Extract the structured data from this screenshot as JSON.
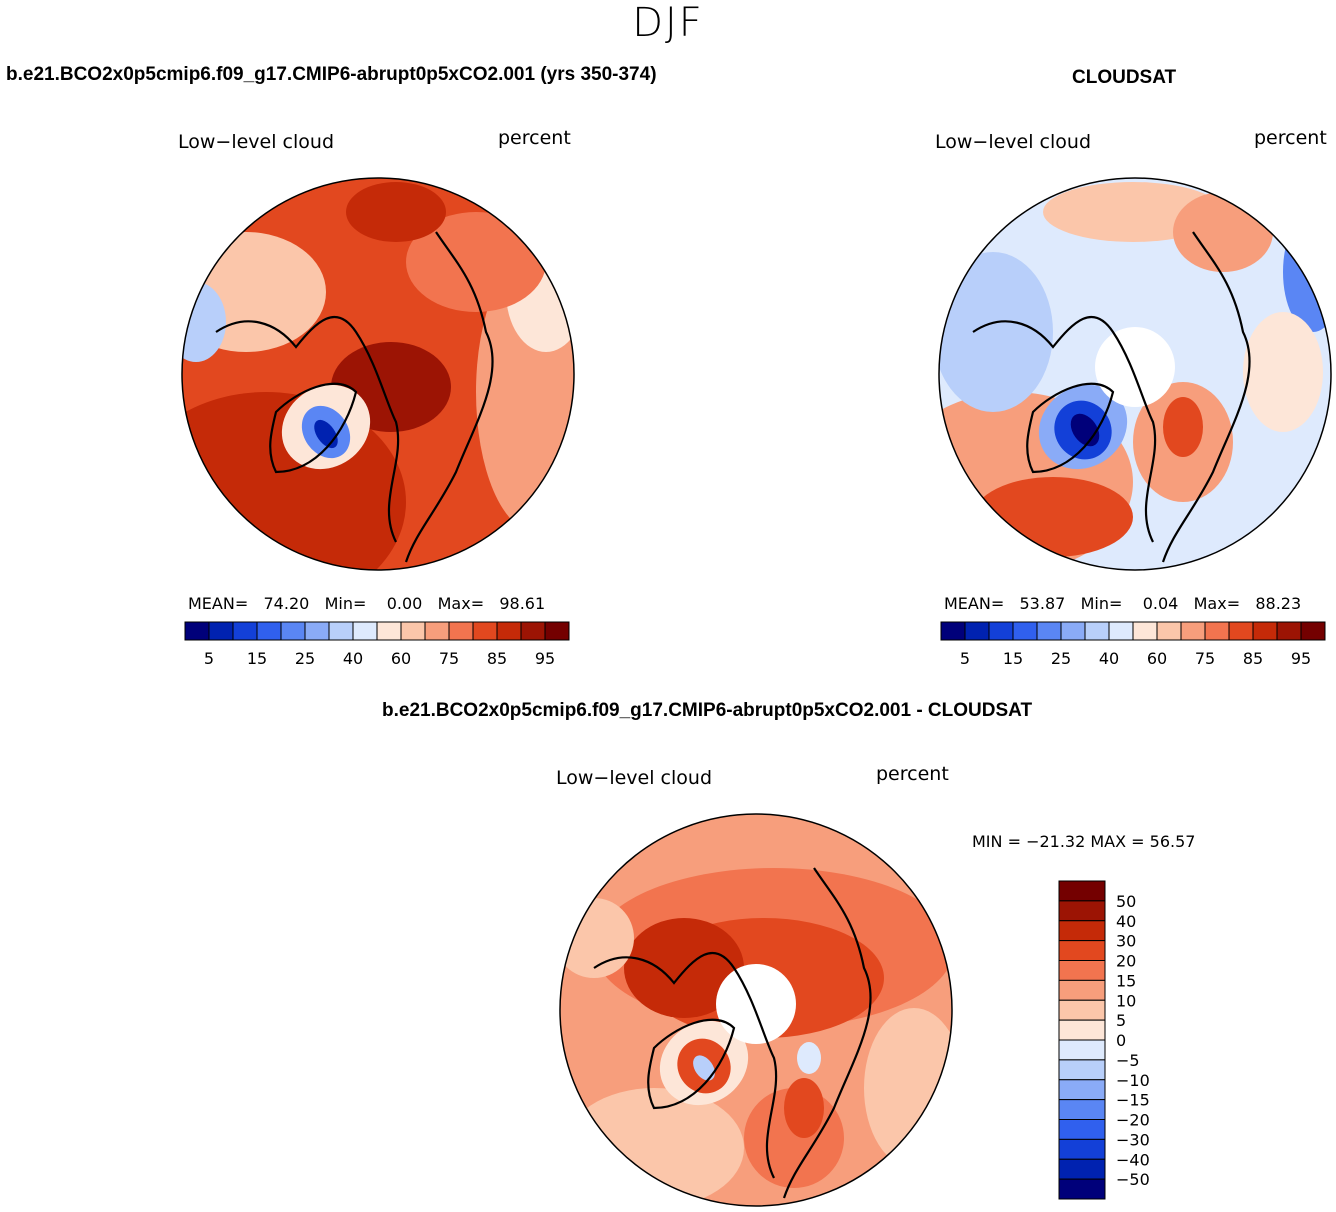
{
  "season": "DJF",
  "colors": {
    "diverging": [
      "#00007a",
      "#0022b0",
      "#1340d8",
      "#3060ee",
      "#5a86f4",
      "#8aabf7",
      "#b8cffa",
      "#deeafd",
      "#fde6d8",
      "#fbc6aa",
      "#f79e7c",
      "#f2744f",
      "#e2481f",
      "#c52a08",
      "#9c1404",
      "#740000"
    ],
    "coastline": "#000000"
  },
  "panels": [
    {
      "title": "b.e21.BCO2x0p5cmip6.f09_g17.CMIP6-abrupt0p5xCO2.001 (yrs 350-374)",
      "variable": "Low−level cloud",
      "units": "percent",
      "stats": {
        "mean_label": "MEAN=",
        "mean": "74.20",
        "min_label": "Min=",
        "min": "0.00",
        "max_label": "Max=",
        "max": "98.61"
      },
      "colorbar_ticks": [
        "5",
        "15",
        "25",
        "40",
        "60",
        "75",
        "85",
        "95"
      ]
    },
    {
      "title": "CLOUDSAT",
      "variable": "Low−level cloud",
      "units": "percent",
      "stats": {
        "mean_label": "MEAN=",
        "mean": "53.87",
        "min_label": "Min=",
        "min": "0.04",
        "max_label": "Max=",
        "max": "88.23"
      },
      "colorbar_ticks": [
        "5",
        "15",
        "25",
        "40",
        "60",
        "75",
        "85",
        "95"
      ]
    },
    {
      "title": "b.e21.BCO2x0p5cmip6.f09_g17.CMIP6-abrupt0p5xCO2.001 - CLOUDSAT",
      "variable": "Low−level cloud",
      "units": "percent",
      "minmax": "MIN = −21.32  MAX =   56.57",
      "colorbar_ticks": [
        "50",
        "40",
        "30",
        "20",
        "15",
        "10",
        "5",
        "0",
        "−5",
        "−10",
        "−15",
        "−20",
        "−30",
        "−40",
        "−50"
      ]
    }
  ],
  "chart_data": [
    {
      "type": "heatmap",
      "projection": "north polar stereographic",
      "title": "b.e21.BCO2x0p5cmip6.f09_g17.CMIP6-abrupt0p5xCO2.001 (yrs 350-374)",
      "variable": "Low−level cloud",
      "units": "percent",
      "mean": 74.2,
      "min": 0.0,
      "max": 98.61,
      "levels": [
        5,
        10,
        15,
        20,
        25,
        30,
        40,
        50,
        60,
        70,
        75,
        80,
        85,
        90,
        95
      ]
    },
    {
      "type": "heatmap",
      "projection": "north polar stereographic",
      "title": "CLOUDSAT",
      "variable": "Low−level cloud",
      "units": "percent",
      "mean": 53.87,
      "min": 0.04,
      "max": 88.23,
      "levels": [
        5,
        10,
        15,
        20,
        25,
        30,
        40,
        50,
        60,
        70,
        75,
        80,
        85,
        90,
        95
      ]
    },
    {
      "type": "heatmap",
      "projection": "north polar stereographic",
      "title": "b.e21.BCO2x0p5cmip6.f09_g17.CMIP6-abrupt0p5xCO2.001 - CLOUDSAT",
      "variable": "Low−level cloud",
      "units": "percent",
      "min": -21.32,
      "max": 56.57,
      "levels": [
        -50,
        -40,
        -30,
        -20,
        -15,
        -10,
        -5,
        0,
        5,
        10,
        15,
        20,
        30,
        40,
        50
      ]
    }
  ]
}
